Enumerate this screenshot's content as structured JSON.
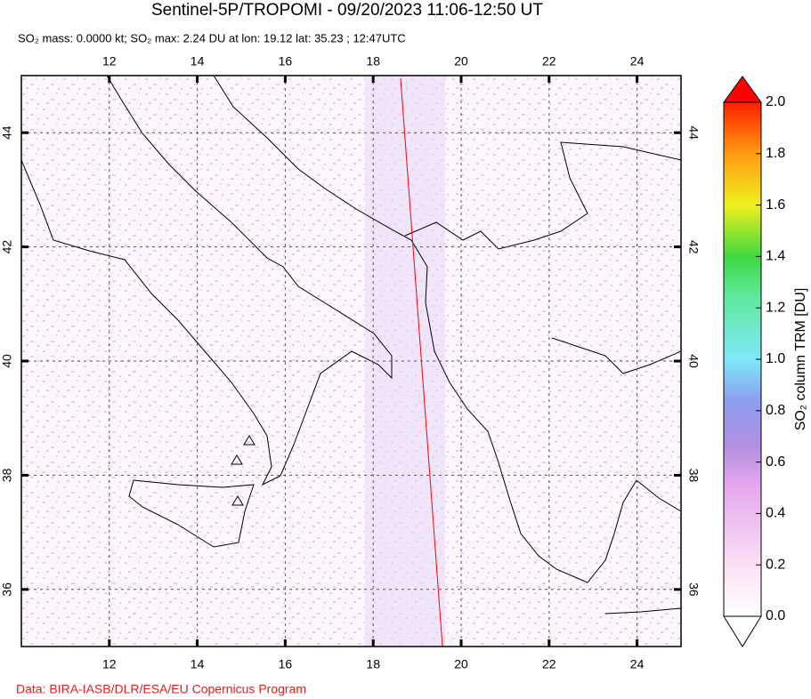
{
  "title": "Sentinel-5P/TROPOMI - 09/20/2023 11:06-12:50 UT",
  "subtitle": "SO₂ mass: 0.0000 kt; SO₂ max: 2.24 DU at lon: 19.12 lat: 35.23 ; 12:47UTC",
  "map": {
    "xlim": [
      10,
      25
    ],
    "ylim": [
      35,
      45
    ],
    "xticks": [
      12,
      14,
      16,
      18,
      20,
      22,
      24
    ],
    "yticks": [
      36,
      38,
      40,
      42,
      44
    ],
    "grid": true
  },
  "colorbar": {
    "label": "SO₂ column TRM [DU]",
    "lim": [
      0,
      2
    ],
    "ticks": [
      {
        "value": 0,
        "label": "0.0"
      },
      {
        "value": 0.2,
        "label": "0.2"
      },
      {
        "value": 0.4,
        "label": "0.4"
      },
      {
        "value": 0.6,
        "label": "0.6"
      },
      {
        "value": 0.8,
        "label": "0.8"
      },
      {
        "value": 1,
        "label": "1.0"
      },
      {
        "value": 1.2,
        "label": "1.2"
      },
      {
        "value": 1.4,
        "label": "1.4"
      },
      {
        "value": 1.6,
        "label": "1.6"
      },
      {
        "value": 1.8,
        "label": "1.8"
      },
      {
        "value": 2,
        "label": "2.0"
      }
    ]
  },
  "footer": "Data: BIRA-IASB/DLR/ESA/EU Copernicus Program"
}
